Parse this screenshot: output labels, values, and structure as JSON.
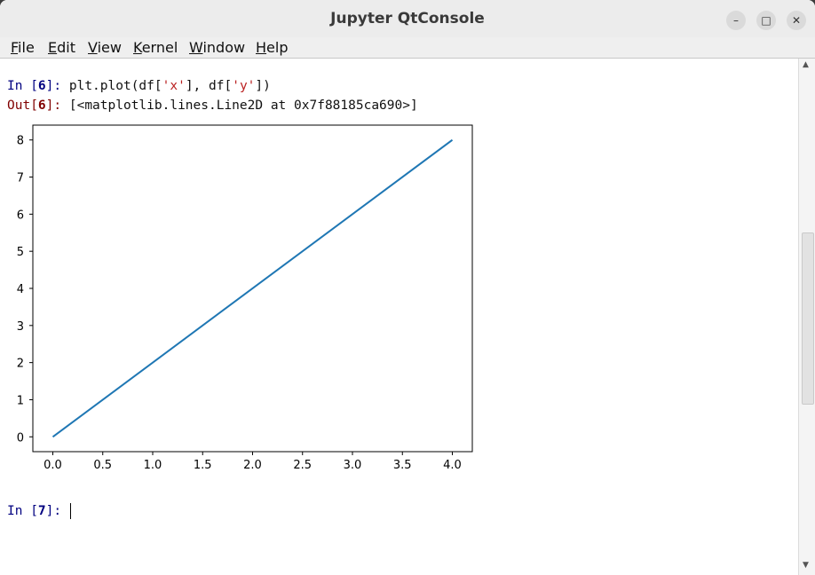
{
  "window": {
    "title": "Jupyter QtConsole",
    "buttons": [
      "minimize",
      "maximize",
      "close"
    ]
  },
  "menubar": {
    "items": [
      {
        "label": "File",
        "mnemonic": "F"
      },
      {
        "label": "Edit",
        "mnemonic": "E"
      },
      {
        "label": "View",
        "mnemonic": "V"
      },
      {
        "label": "Kernel",
        "mnemonic": "K"
      },
      {
        "label": "Window",
        "mnemonic": "W"
      },
      {
        "label": "Help",
        "mnemonic": "H"
      }
    ]
  },
  "console": {
    "cell6_in_prompt": "In [",
    "cell6_in_number": "6",
    "cell6_in_suffix": "]: ",
    "cell6_code_prefix": "plt.plot(df[",
    "cell6_code_str1": "'x'",
    "cell6_code_mid": "], df[",
    "cell6_code_str2": "'y'",
    "cell6_code_suffix": "])",
    "cell6_out_prompt": "Out[",
    "cell6_out_number": "6",
    "cell6_out_suffix": "]: ",
    "cell6_out_text": "[<matplotlib.lines.Line2D at 0x7f88185ca690>]",
    "cell7_in_prompt": "In [",
    "cell7_in_number": "7",
    "cell7_in_suffix": "]: "
  },
  "chart_data": {
    "type": "line",
    "x": [
      0.0,
      4.0
    ],
    "series": [
      {
        "values": [
          0,
          8
        ]
      }
    ],
    "xlim": [
      -0.2,
      4.2
    ],
    "ylim": [
      -0.4,
      8.4
    ],
    "xticks": [
      "0.0",
      "0.5",
      "1.0",
      "1.5",
      "2.0",
      "2.5",
      "3.0",
      "3.5",
      "4.0"
    ],
    "yticks": [
      "0",
      "1",
      "2",
      "3",
      "4",
      "5",
      "6",
      "7",
      "8"
    ],
    "line_color": "#1f77b4",
    "grid": false
  }
}
